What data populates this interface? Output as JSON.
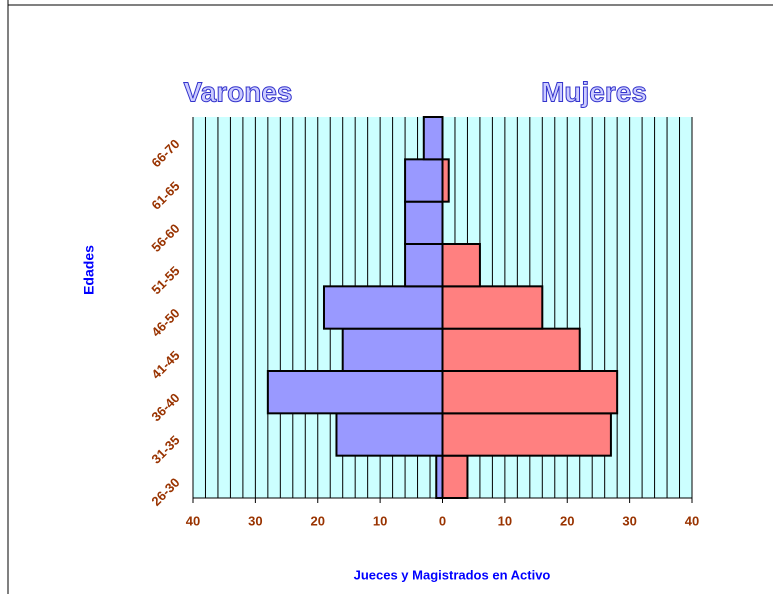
{
  "chart_data": {
    "type": "pyramid",
    "title_left": "Varones",
    "title_right": "Mujeres",
    "y_label": "Edades",
    "x_label": "Jueces y Magistrados en Activo",
    "categories": [
      "26-30",
      "31-35",
      "36-40",
      "41-45",
      "46-50",
      "51-55",
      "56-60",
      "61-65",
      "66-70"
    ],
    "series": [
      {
        "name": "Varones",
        "color": "#9999ff",
        "values": [
          -1,
          -17,
          -28,
          -16,
          -19,
          -6,
          -6,
          -6,
          -3
        ]
      },
      {
        "name": "Mujeres",
        "color": "#ff8080",
        "values": [
          4,
          27,
          28,
          22,
          16,
          6,
          0,
          1,
          0
        ]
      }
    ],
    "xlim": [
      -40,
      40
    ],
    "xticks": [
      {
        "value": -40,
        "label": "40"
      },
      {
        "value": -30,
        "label": "30"
      },
      {
        "value": -20,
        "label": "20"
      },
      {
        "value": -10,
        "label": "10"
      },
      0,
      10,
      20,
      30,
      40
    ],
    "grid_step": 2,
    "grid": true,
    "plot_color": "#ccffff"
  }
}
